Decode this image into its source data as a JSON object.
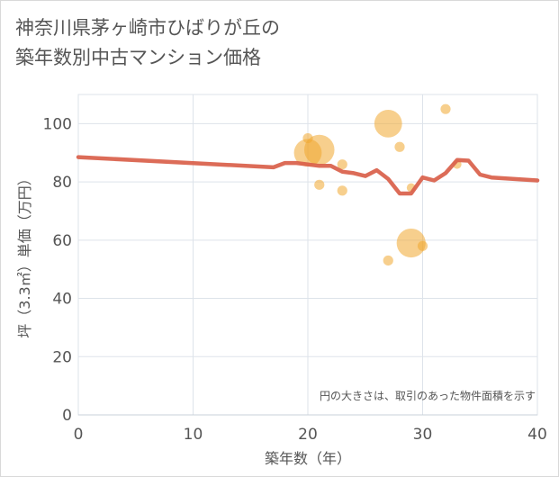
{
  "title_line1": "神奈川県茅ヶ崎市ひばりが丘の",
  "title_line2": "築年数別中古マンション価格",
  "note": "円の大きさは、取引のあった物件面積を示す",
  "chart_data": {
    "type": "scatter",
    "xlabel": "築年数（年）",
    "ylabel": "坪（3.3㎡）単価（万円）",
    "xlim": [
      0,
      40
    ],
    "ylim": [
      0,
      110
    ],
    "xticks": [
      0,
      10,
      20,
      30,
      40
    ],
    "yticks": [
      0,
      20,
      40,
      60,
      80,
      100
    ],
    "grid": true,
    "colors": {
      "scatter": "#f0a830",
      "line": "#d9604a"
    },
    "scatter": [
      {
        "x": 20,
        "y": 90,
        "size": 2.2
      },
      {
        "x": 20,
        "y": 95,
        "size": 0.8
      },
      {
        "x": 21,
        "y": 91,
        "size": 2.4
      },
      {
        "x": 21,
        "y": 79,
        "size": 0.8
      },
      {
        "x": 23,
        "y": 86,
        "size": 0.8
      },
      {
        "x": 23,
        "y": 77,
        "size": 0.8
      },
      {
        "x": 27,
        "y": 100,
        "size": 2.2
      },
      {
        "x": 27,
        "y": 53,
        "size": 0.8
      },
      {
        "x": 28,
        "y": 92,
        "size": 0.8
      },
      {
        "x": 29,
        "y": 78,
        "size": 0.7
      },
      {
        "x": 29,
        "y": 59,
        "size": 2.3
      },
      {
        "x": 30,
        "y": 58,
        "size": 0.8
      },
      {
        "x": 32,
        "y": 105,
        "size": 0.8
      },
      {
        "x": 33,
        "y": 86,
        "size": 0.7
      }
    ],
    "trend": {
      "x": [
        0,
        17,
        18,
        19,
        20,
        21,
        22,
        23,
        24,
        25,
        26,
        27,
        28,
        29,
        30,
        31,
        32,
        33,
        34,
        35,
        36,
        40
      ],
      "y": [
        88.5,
        85,
        86.5,
        86.5,
        86,
        85.5,
        85.5,
        83.5,
        83,
        82,
        84,
        81,
        76,
        76,
        81.5,
        80.5,
        83,
        87.5,
        87.3,
        82.5,
        81.5,
        80.5
      ]
    }
  }
}
